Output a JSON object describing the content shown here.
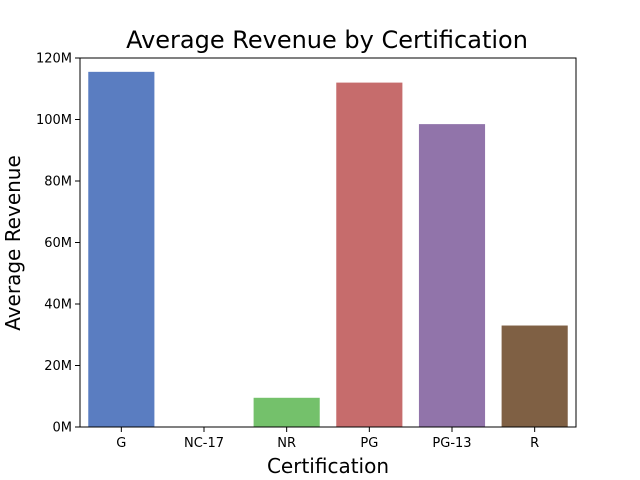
{
  "chart_data": {
    "type": "bar",
    "title": "Average Revenue by Certification",
    "xlabel": "Certification",
    "ylabel": "Average Revenue",
    "categories": [
      "G",
      "NC-17",
      "NR",
      "PG",
      "PG-13",
      "R"
    ],
    "values": [
      115500000,
      0,
      9500000,
      112000000,
      98500000,
      33000000
    ],
    "colors": [
      "#5a7dc1",
      "#e1812c",
      "#74c16b",
      "#c66c6c",
      "#9174aa",
      "#7f6044"
    ],
    "ylim": [
      0,
      120000000
    ],
    "yticks": [
      0,
      20000000,
      40000000,
      60000000,
      80000000,
      100000000,
      120000000
    ],
    "ytick_labels": [
      "0M",
      "20M",
      "40M",
      "60M",
      "80M",
      "100M",
      "120M"
    ],
    "grid": false,
    "legend": "none"
  }
}
